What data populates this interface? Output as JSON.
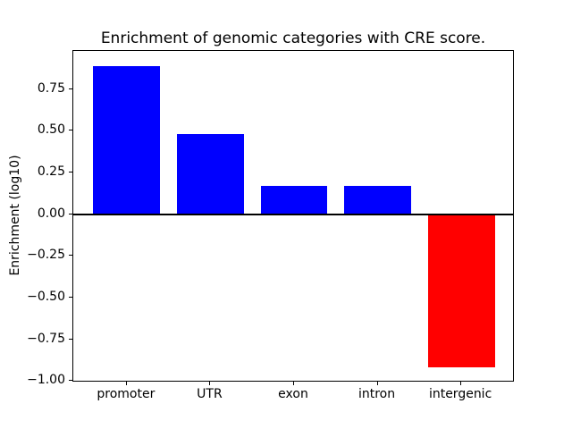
{
  "figure": {
    "background_color": "#ffffff",
    "text_color": "#000000"
  },
  "chart_data": {
    "type": "bar",
    "title": "Enrichment of genomic categories with CRE score.",
    "xlabel": "",
    "ylabel": "Enrichment (log10)",
    "categories": [
      "promoter",
      "UTR",
      "exon",
      "intron",
      "intergenic"
    ],
    "values": [
      0.89,
      0.48,
      0.17,
      0.17,
      -0.92
    ],
    "bar_colors": [
      "#0000ff",
      "#0000ff",
      "#0000ff",
      "#0000ff",
      "#ff0000"
    ],
    "bar_width_fraction": 0.8,
    "yticks": [
      -1.0,
      -0.75,
      -0.5,
      -0.25,
      0.0,
      0.25,
      0.5,
      0.75
    ],
    "ytick_labels": [
      "−1.00",
      "−0.75",
      "−0.50",
      "−0.25",
      "0.00",
      "0.25",
      "0.50",
      "0.75"
    ],
    "ylim": [
      -1.01,
      0.98
    ],
    "xlim": [
      -0.64,
      4.64
    ],
    "zero_line": true,
    "zero_line_color": "#000000",
    "grid": false,
    "legend": false
  }
}
